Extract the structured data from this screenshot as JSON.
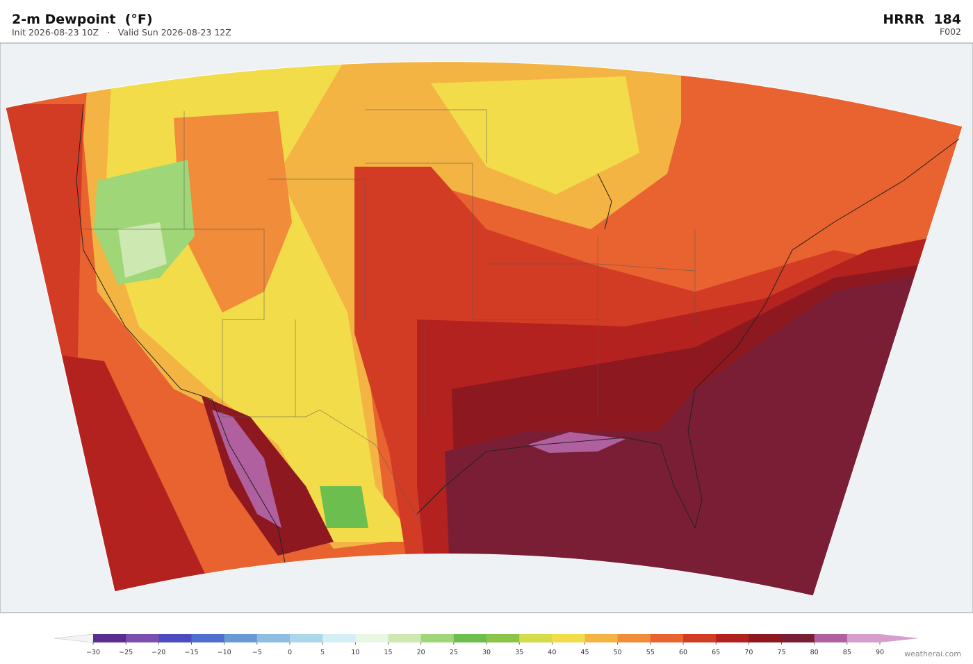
{
  "header": {
    "title": "2-m Dewpoint  (°F)",
    "subtitle": "Init 2026-08-23 10Z   ·   Valid Sun 2026-08-23 12Z",
    "model": "HRRR  184",
    "frame": "F002"
  },
  "colorbar": {
    "xlim": [
      -30,
      90
    ],
    "ticks": [
      {
        "value": -30,
        "label": "−30"
      },
      {
        "value": -25,
        "label": "−25"
      },
      {
        "value": -20,
        "label": "−20"
      },
      {
        "value": -15,
        "label": "−15"
      },
      {
        "value": -10,
        "label": "−10"
      },
      {
        "value": -5,
        "label": "−5"
      },
      0,
      5,
      10,
      15,
      20,
      25,
      30,
      35,
      40,
      45,
      50,
      55,
      60,
      65,
      70,
      75,
      80,
      85,
      90
    ],
    "colors": [
      "#5a2d91",
      "#7b4fb0",
      "#4b4bbf",
      "#4f6fcf",
      "#6a9ad6",
      "#8dbde0",
      "#acd6ea",
      "#d4eef4",
      "#e8f6e4",
      "#cde8b0",
      "#9fd678",
      "#6cbf4f",
      "#8cc44a",
      "#d4dc4a",
      "#f2dc4a",
      "#f4b443",
      "#f08c3a",
      "#e8632f",
      "#d23c25",
      "#b3221f",
      "#8e1820",
      "#7a1e36",
      "#b0609e",
      "#d89ecb"
    ],
    "under_color": "#f4f4f4",
    "over_color": "#d89ecb"
  },
  "watermark": "weatherai.com"
}
